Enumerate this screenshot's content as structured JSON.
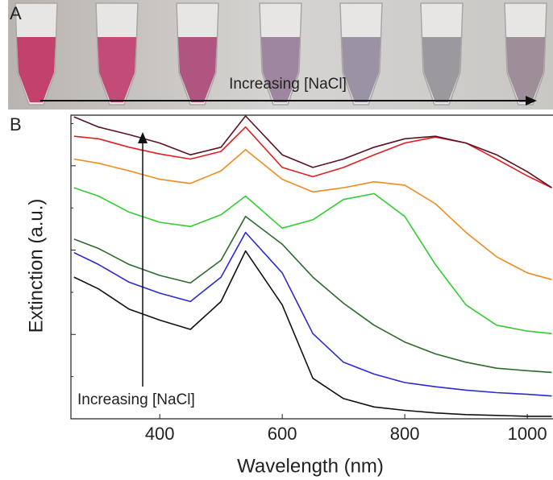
{
  "photo": {
    "label": "A",
    "annotation": "Increasing [NaCl]"
  },
  "chart_data": {
    "type": "line",
    "panel_label": "B",
    "annotation": "Increasing [NaCl]",
    "x_label": "Wavelength (nm)",
    "y_label": "Extinction (a.u.)",
    "x": [
      260,
      300,
      350,
      400,
      450,
      500,
      540,
      600,
      650,
      700,
      750,
      800,
      850,
      900,
      950,
      1000,
      1040
    ],
    "xlim": [
      255,
      1042
    ],
    "xticks": [
      400,
      600,
      800,
      1000
    ],
    "ylim": [
      0,
      3.6
    ],
    "yticks": [
      0,
      0.5,
      1,
      1.5,
      2,
      2.5,
      3,
      3.5
    ],
    "series": [
      {
        "color": "#111111",
        "values": [
          1.68,
          1.54,
          1.3,
          1.17,
          1.06,
          1.39,
          1.99,
          1.35,
          0.48,
          0.24,
          0.14,
          0.1,
          0.07,
          0.05,
          0.04,
          0.03,
          0.03
        ]
      },
      {
        "color": "#2a2ad0",
        "values": [
          1.97,
          1.83,
          1.62,
          1.49,
          1.39,
          1.68,
          2.21,
          1.73,
          1.01,
          0.67,
          0.53,
          0.43,
          0.38,
          0.34,
          0.31,
          0.29,
          0.27
        ]
      },
      {
        "color": "#2e6a2e",
        "values": [
          2.13,
          2.02,
          1.83,
          1.7,
          1.61,
          1.88,
          2.4,
          2.07,
          1.68,
          1.37,
          1.11,
          0.91,
          0.77,
          0.67,
          0.6,
          0.57,
          0.55
        ]
      },
      {
        "color": "#33cc33",
        "values": [
          2.74,
          2.64,
          2.45,
          2.33,
          2.28,
          2.42,
          2.64,
          2.26,
          2.36,
          2.6,
          2.67,
          2.4,
          1.83,
          1.35,
          1.11,
          1.04,
          1.01
        ]
      },
      {
        "color": "#f08c1e",
        "values": [
          3.08,
          3.03,
          2.94,
          2.84,
          2.79,
          2.94,
          3.19,
          2.84,
          2.69,
          2.74,
          2.81,
          2.77,
          2.55,
          2.21,
          1.92,
          1.73,
          1.65
        ]
      },
      {
        "color": "#e02020",
        "values": [
          3.35,
          3.32,
          3.22,
          3.14,
          3.08,
          3.17,
          3.46,
          2.98,
          2.87,
          2.98,
          3.13,
          3.27,
          3.34,
          3.27,
          3.08,
          2.88,
          2.74
        ]
      },
      {
        "color": "#5a1222",
        "values": [
          3.58,
          3.46,
          3.37,
          3.27,
          3.13,
          3.22,
          3.59,
          3.13,
          2.98,
          3.08,
          3.22,
          3.32,
          3.35,
          3.27,
          3.13,
          2.93,
          2.74
        ]
      }
    ]
  }
}
